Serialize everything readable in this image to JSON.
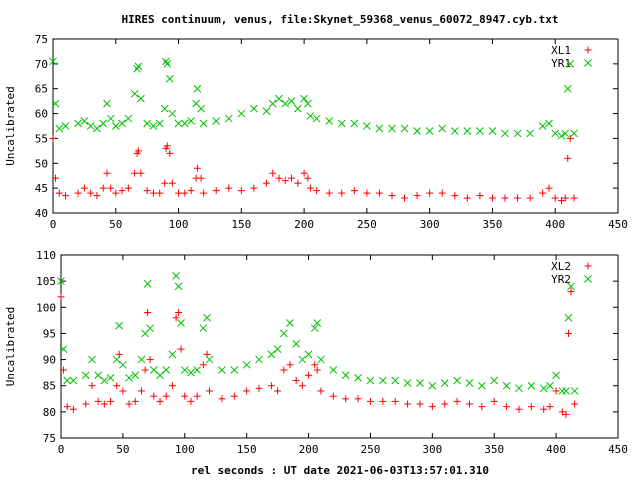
{
  "chart_data": {
    "title": "HIRES continuum, venus, file:Skynet_59368_venus_60072_8947.cyb.txt",
    "xlabel": "rel seconds : UT date 2021-06-03T13:57:01.310",
    "panels": [
      {
        "type": "scatter",
        "ylabel": "Uncalibrated",
        "xlim": [
          0,
          450
        ],
        "ylim": [
          40,
          75
        ],
        "xticks": [
          0,
          50,
          100,
          150,
          200,
          250,
          300,
          350,
          400,
          450
        ],
        "yticks": [
          40,
          45,
          50,
          55,
          60,
          65,
          70,
          75
        ],
        "legend_position": "top-right",
        "series": [
          {
            "name": "XL1",
            "marker": "plus",
            "color": "#ff0000",
            "x": [
              0,
              2,
              5,
              10,
              20,
              25,
              30,
              35,
              40,
              43,
              46,
              50,
              55,
              60,
              65,
              67,
              68,
              70,
              75,
              80,
              85,
              89,
              90,
              91,
              93,
              95,
              100,
              105,
              110,
              114,
              115,
              118,
              120,
              130,
              140,
              150,
              160,
              170,
              175,
              180,
              185,
              190,
              195,
              200,
              203,
              205,
              210,
              220,
              230,
              240,
              250,
              260,
              270,
              280,
              290,
              300,
              310,
              320,
              330,
              340,
              350,
              360,
              370,
              380,
              390,
              395,
              400,
              405,
              408,
              410,
              412,
              415
            ],
            "y": [
              55,
              47,
              44,
              43.5,
              44,
              45,
              44,
              43.5,
              45,
              48,
              45,
              44,
              44.5,
              45,
              48,
              52,
              52.5,
              48,
              44.5,
              44,
              44,
              46,
              53,
              53.5,
              52,
              46,
              44,
              44,
              44.5,
              47,
              49,
              47,
              44,
              44.5,
              45,
              44.5,
              45,
              46,
              48,
              47,
              46.5,
              47,
              46,
              48,
              47,
              45,
              44.5,
              44,
              44,
              44.5,
              44,
              44,
              43.5,
              43,
              43.5,
              44,
              44,
              43.5,
              43,
              43.5,
              43,
              43,
              43,
              43,
              44,
              45,
              43,
              42.5,
              43,
              51,
              55,
              43
            ]
          },
          {
            "name": "YR1",
            "marker": "x",
            "color": "#00c000",
            "x": [
              0,
              2,
              5,
              10,
              20,
              25,
              30,
              35,
              40,
              43,
              46,
              50,
              55,
              60,
              65,
              67,
              68,
              70,
              75,
              80,
              85,
              89,
              90,
              91,
              93,
              95,
              100,
              105,
              110,
              114,
              115,
              118,
              120,
              130,
              140,
              150,
              160,
              170,
              175,
              180,
              185,
              190,
              195,
              200,
              203,
              205,
              210,
              220,
              230,
              240,
              250,
              260,
              270,
              280,
              290,
              300,
              310,
              320,
              330,
              340,
              350,
              360,
              370,
              380,
              390,
              395,
              400,
              405,
              408,
              410,
              412,
              415
            ],
            "y": [
              70.5,
              62,
              57,
              57.5,
              58,
              58.5,
              57.5,
              57,
              58,
              62,
              59,
              57.5,
              58,
              59,
              64,
              69,
              69.5,
              63,
              58,
              57.5,
              58,
              61,
              70.5,
              70,
              67,
              60,
              58,
              58,
              58.5,
              62,
              65,
              61,
              58,
              58.5,
              59,
              60,
              61,
              60.5,
              62,
              63,
              62,
              62.5,
              61,
              63,
              62,
              59.5,
              59,
              58.5,
              58,
              58,
              57.5,
              57,
              57,
              57,
              56.5,
              56.5,
              57,
              56.5,
              56.5,
              56.5,
              56.5,
              56,
              56,
              56,
              57.5,
              58,
              56,
              55.5,
              56,
              65,
              70,
              56
            ]
          }
        ]
      },
      {
        "type": "scatter",
        "ylabel": "Uncalibrated",
        "xlim": [
          0,
          450
        ],
        "ylim": [
          75,
          110
        ],
        "xticks": [
          0,
          50,
          100,
          150,
          200,
          250,
          300,
          350,
          400,
          450
        ],
        "yticks": [
          75,
          80,
          85,
          90,
          95,
          100,
          105,
          110
        ],
        "legend_position": "top-right",
        "series": [
          {
            "name": "XL2",
            "marker": "plus",
            "color": "#ff0000",
            "x": [
              0,
              2,
              5,
              10,
              20,
              25,
              30,
              35,
              40,
              45,
              47,
              50,
              55,
              60,
              65,
              68,
              70,
              72,
              75,
              80,
              85,
              90,
              93,
              95,
              97,
              100,
              105,
              110,
              115,
              118,
              120,
              130,
              140,
              150,
              160,
              170,
              175,
              180,
              185,
              190,
              195,
              200,
              205,
              207,
              210,
              220,
              230,
              240,
              250,
              260,
              270,
              280,
              290,
              300,
              310,
              320,
              330,
              340,
              350,
              360,
              370,
              380,
              390,
              395,
              400,
              405,
              408,
              410,
              412,
              415
            ],
            "y": [
              102,
              88,
              81,
              80.5,
              81.5,
              85,
              82,
              81.5,
              82,
              85,
              91,
              84,
              81.5,
              82,
              84,
              88,
              99,
              90,
              83,
              82,
              83,
              85,
              98,
              99,
              92,
              83,
              82,
              83,
              89,
              91,
              84,
              82.5,
              83,
              84,
              84.5,
              85,
              84,
              88,
              89,
              86,
              85,
              87,
              89,
              88,
              84,
              83,
              82.5,
              82.5,
              82,
              82,
              82,
              81.5,
              81.5,
              81,
              81.5,
              82,
              81.5,
              81,
              82,
              81,
              80.5,
              81,
              80.5,
              81,
              84,
              80,
              79.5,
              95,
              103,
              81.5
            ]
          },
          {
            "name": "YR2",
            "marker": "x",
            "color": "#00c000",
            "x": [
              0,
              2,
              5,
              10,
              20,
              25,
              30,
              35,
              40,
              45,
              47,
              50,
              55,
              60,
              65,
              68,
              70,
              72,
              75,
              80,
              85,
              90,
              93,
              95,
              97,
              100,
              105,
              110,
              115,
              118,
              120,
              130,
              140,
              150,
              160,
              170,
              175,
              180,
              185,
              190,
              195,
              200,
              205,
              207,
              210,
              220,
              230,
              240,
              250,
              260,
              270,
              280,
              290,
              300,
              310,
              320,
              330,
              340,
              350,
              360,
              370,
              380,
              390,
              395,
              400,
              405,
              408,
              410,
              412,
              415
            ],
            "y": [
              105,
              92,
              86,
              86,
              87,
              90,
              87,
              86,
              86.5,
              90,
              96.5,
              89,
              86.5,
              87,
              90,
              95,
              104.5,
              96,
              88,
              87,
              88,
              91,
              106,
              104,
              97,
              88,
              87.5,
              88,
              96,
              98,
              90,
              88,
              88,
              89,
              90,
              91,
              92,
              95,
              97,
              93,
              90,
              91,
              96,
              97,
              90,
              88,
              87,
              86.5,
              86,
              86,
              86,
              85.5,
              85.5,
              85,
              85.5,
              86,
              85.5,
              85,
              86,
              85,
              84.5,
              85,
              84.5,
              85,
              87,
              84,
              84,
              98,
              104,
              84
            ]
          }
        ]
      }
    ]
  }
}
